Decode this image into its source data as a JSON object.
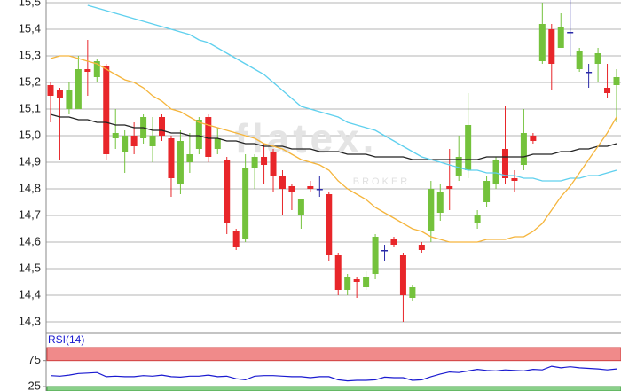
{
  "chart_data": {
    "type": "candlestick",
    "watermark": "flatex.",
    "watermark_sub": "BROKER",
    "ylim": [
      14.26,
      15.51
    ],
    "yticks": [
      {
        "value": 15.5,
        "label": "15,5"
      },
      {
        "value": 15.4,
        "label": "15,4"
      },
      {
        "value": 15.3,
        "label": "15,3"
      },
      {
        "value": 15.2,
        "label": "15,2"
      },
      {
        "value": 15.1,
        "label": "15,1"
      },
      {
        "value": 15.0,
        "label": "15,0"
      },
      {
        "value": 14.9,
        "label": "14,9"
      },
      {
        "value": 14.8,
        "label": "14,8"
      },
      {
        "value": 14.7,
        "label": "14,7"
      },
      {
        "value": 14.6,
        "label": "14,6"
      },
      {
        "value": 14.5,
        "label": "14,5"
      },
      {
        "value": 14.4,
        "label": "14,4"
      },
      {
        "value": 14.3,
        "label": "14,3"
      }
    ],
    "grid": true,
    "up_color": "#74c23c",
    "down_color": "#e8262a",
    "doji_color": "#2a2aa8",
    "open": [
      15.19,
      15.17,
      15.1,
      15.1,
      15.25,
      15.22,
      15.26,
      14.99,
      14.94,
      15.0,
      14.99,
      14.96,
      15.07,
      14.99,
      14.82,
      14.9,
      14.95,
      15.07,
      14.95,
      14.91,
      14.64,
      14.61,
      14.88,
      14.92,
      14.94,
      14.85,
      14.81,
      14.7,
      14.81,
      14.8,
      14.78,
      14.55,
      14.42,
      14.46,
      14.43,
      14.48,
      14.57,
      14.61,
      14.55,
      14.39,
      14.59,
      14.64,
      14.71,
      14.81,
      14.85,
      14.87,
      14.67,
      14.75,
      14.82,
      14.95,
      14.84,
      14.89,
      15.0,
      15.28,
      15.4,
      15.33,
      15.39,
      15.25,
      15.24,
      15.27,
      15.18,
      15.19
    ],
    "high": [
      15.2,
      15.18,
      15.2,
      15.3,
      15.36,
      15.29,
      15.27,
      15.1,
      15.02,
      15.05,
      15.08,
      15.07,
      15.08,
      15.0,
      15.02,
      15.01,
      15.07,
      15.08,
      15.03,
      14.92,
      14.65,
      14.93,
      14.93,
      14.97,
      14.95,
      14.87,
      14.82,
      14.76,
      14.83,
      14.85,
      14.79,
      14.56,
      14.48,
      14.47,
      14.49,
      14.63,
      14.59,
      14.62,
      14.56,
      14.44,
      14.6,
      14.83,
      14.82,
      14.95,
      15.0,
      15.16,
      14.72,
      14.85,
      14.92,
      15.11,
      14.87,
      15.1,
      15.01,
      15.5,
      15.42,
      15.46,
      15.53,
      15.33,
      15.27,
      15.33,
      15.27,
      15.25
    ],
    "low": [
      15.05,
      14.91,
      15.08,
      15.1,
      15.15,
      15.2,
      14.91,
      14.95,
      14.86,
      14.93,
      14.97,
      14.9,
      14.98,
      14.77,
      14.78,
      14.86,
      14.93,
      14.9,
      14.93,
      14.63,
      14.57,
      14.6,
      14.8,
      14.82,
      14.79,
      14.7,
      14.72,
      14.65,
      14.79,
      14.77,
      14.53,
      14.4,
      14.4,
      14.39,
      14.42,
      14.46,
      14.53,
      14.58,
      14.3,
      14.38,
      14.56,
      14.6,
      14.68,
      14.72,
      14.83,
      14.84,
      14.65,
      14.73,
      14.8,
      14.82,
      14.79,
      14.87,
      14.97,
      15.27,
      15.17,
      15.33,
      15.3,
      15.24,
      15.18,
      15.2,
      15.14,
      15.05
    ],
    "close": [
      15.15,
      15.14,
      15.17,
      15.25,
      15.24,
      15.28,
      14.93,
      15.01,
      15.0,
      14.96,
      15.07,
      15.0,
      15.0,
      14.84,
      14.98,
      14.93,
      15.06,
      14.92,
      14.99,
      14.67,
      14.58,
      14.88,
      14.92,
      14.89,
      14.85,
      14.8,
      14.79,
      14.76,
      14.8,
      14.8,
      14.55,
      14.42,
      14.47,
      14.45,
      14.47,
      14.62,
      14.57,
      14.59,
      14.4,
      14.43,
      14.57,
      14.8,
      14.79,
      14.8,
      14.92,
      15.04,
      14.7,
      14.83,
      14.91,
      14.84,
      14.83,
      15.01,
      14.98,
      15.42,
      15.27,
      15.41,
      15.39,
      15.32,
      15.24,
      15.31,
      15.16,
      15.22
    ],
    "series": [
      {
        "color": "#222222",
        "values": [
          15.08,
          15.07,
          15.07,
          15.06,
          15.06,
          15.05,
          15.05,
          15.04,
          15.04,
          15.03,
          15.03,
          15.02,
          15.02,
          15.01,
          15.01,
          15.0,
          15.0,
          14.99,
          14.99,
          14.98,
          14.98,
          14.97,
          14.97,
          14.96,
          14.96,
          14.96,
          14.95,
          14.95,
          14.95,
          14.94,
          14.94,
          14.94,
          14.93,
          14.93,
          14.93,
          14.92,
          14.92,
          14.92,
          14.92,
          14.91,
          14.91,
          14.91,
          14.91,
          14.91,
          14.91,
          14.91,
          14.91,
          14.92,
          14.92,
          14.92,
          14.92,
          14.92,
          14.93,
          14.93,
          14.93,
          14.94,
          14.94,
          14.95,
          14.95,
          14.96,
          14.96,
          14.97
        ]
      },
      {
        "color": "#5fd0ee",
        "values": [
          null,
          null,
          null,
          null,
          15.49,
          15.48,
          15.47,
          15.46,
          15.45,
          15.44,
          15.43,
          15.42,
          15.41,
          15.4,
          15.39,
          15.38,
          15.36,
          15.35,
          15.33,
          15.31,
          15.29,
          15.27,
          15.25,
          15.23,
          15.2,
          15.17,
          15.14,
          15.11,
          15.1,
          15.09,
          15.08,
          15.07,
          15.05,
          15.04,
          15.03,
          15.02,
          15.0,
          14.98,
          14.96,
          14.94,
          14.92,
          14.91,
          14.9,
          14.89,
          14.88,
          14.87,
          14.87,
          14.86,
          14.86,
          14.85,
          14.85,
          14.84,
          14.84,
          14.83,
          14.83,
          14.83,
          14.84,
          14.84,
          14.85,
          14.85,
          14.86,
          14.87
        ]
      },
      {
        "color": "#f5b53c",
        "values": [
          15.29,
          15.3,
          15.3,
          15.29,
          15.28,
          15.27,
          15.25,
          15.23,
          15.21,
          15.2,
          15.18,
          15.15,
          15.13,
          15.1,
          15.09,
          15.07,
          15.05,
          15.04,
          15.03,
          15.02,
          15.01,
          15.0,
          14.99,
          14.97,
          14.96,
          14.95,
          14.93,
          14.91,
          14.9,
          14.89,
          14.87,
          14.83,
          14.8,
          14.78,
          14.76,
          14.73,
          14.71,
          14.69,
          14.67,
          14.65,
          14.64,
          14.62,
          14.61,
          14.6,
          14.6,
          14.6,
          14.6,
          14.61,
          14.61,
          14.61,
          14.62,
          14.62,
          14.64,
          14.67,
          14.72,
          14.77,
          14.81,
          14.86,
          14.91,
          14.96,
          15.01,
          15.07
        ]
      }
    ],
    "rsi": {
      "label": "RSI(14)",
      "ylim": [
        16.5,
        100
      ],
      "yticks": [
        75,
        25
      ],
      "color": "#1a1ad0",
      "values": [
        46,
        45,
        47,
        50,
        51,
        52,
        44,
        45,
        44,
        44,
        46,
        45,
        47,
        44,
        43,
        45,
        45,
        47,
        44,
        45,
        40,
        38,
        45,
        46,
        46,
        45,
        44,
        44,
        42,
        44,
        44,
        38,
        36,
        37,
        37,
        38,
        43,
        42,
        42,
        37,
        38,
        44,
        49,
        53,
        52,
        55,
        58,
        56,
        55,
        57,
        56,
        55,
        58,
        57,
        64,
        61,
        63,
        61,
        60,
        59,
        57,
        59
      ]
    }
  }
}
